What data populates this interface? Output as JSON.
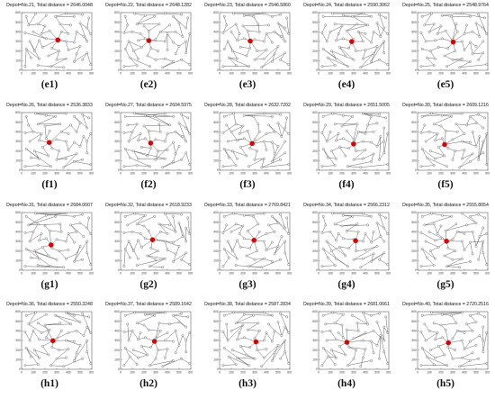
{
  "figure": {
    "panels": [
      {
        "title": "Depot=No.21, Total distance = 2646.0048",
        "label": "(e1)"
      },
      {
        "title": "Depot=No.22, Total distance = 2648.1282",
        "label": "(e2)"
      },
      {
        "title": "Depot=No.23, Total distance = 2546.5860",
        "label": "(e3)"
      },
      {
        "title": "Depot=No.24, Total distance = 2590.3062",
        "label": "(e4)"
      },
      {
        "title": "Depot=No.25, Total distance = 2548.9764",
        "label": "(e5)"
      },
      {
        "title": "Depot=No.26, Total distance = 2536.3833",
        "label": "(f1)"
      },
      {
        "title": "Depot=No.27, Total distance = 2604.5975",
        "label": "(f2)"
      },
      {
        "title": "Depot=No.28, Total distance = 2632.7202",
        "label": "(f3)"
      },
      {
        "title": "Depot=No.29, Total distance = 2651.5005",
        "label": "(f4)"
      },
      {
        "title": "Depot=No.30, Total distance = 2609.1216",
        "label": "(f5)"
      },
      {
        "title": "Depot=No.31, Total distance = 2684.0607",
        "label": "(g1)"
      },
      {
        "title": "Depot=No.32, Total distance = 2618.9233",
        "label": "(g2)"
      },
      {
        "title": "Depot=No.33, Total distance = 2769.8421",
        "label": "(g3)"
      },
      {
        "title": "Depot=No.34, Total distance = 2566.2312",
        "label": "(g4)"
      },
      {
        "title": "Depot=No.35, Total distance = 2555.8054",
        "label": "(g5)"
      },
      {
        "title": "Depot=No.36, Total distance = 2550.3248",
        "label": "(h1)"
      },
      {
        "title": "Depot=No.37, Total distance = 2589.1642",
        "label": "(h2)"
      },
      {
        "title": "Depot=No.38, Total distance = 2587.2834",
        "label": "(h3)"
      },
      {
        "title": "Depot=No.39, Total distance = 2681.0661",
        "label": "(h4)"
      },
      {
        "title": "Depot=No.40, Total distance = 2720.2516",
        "label": "(h5)"
      }
    ],
    "x_ticks": [
      "0",
      "100",
      "200",
      "300",
      "400",
      "500",
      "600"
    ],
    "y_ticks": [
      "0",
      "100",
      "200",
      "300",
      "400",
      "500",
      "600"
    ],
    "x_range": [
      0,
      600
    ],
    "y_range": [
      0,
      600
    ],
    "colors": {
      "depot": "#e00000",
      "node": "#ffffff",
      "edge": "#555555",
      "axis": "#444444"
    }
  }
}
